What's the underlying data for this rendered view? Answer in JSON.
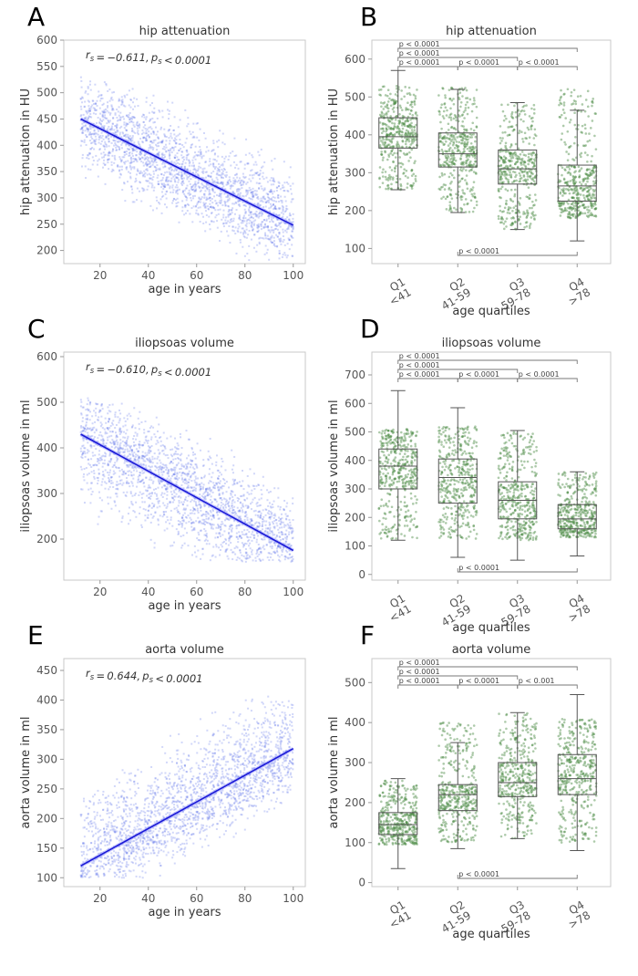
{
  "figure": {
    "panels": [
      {
        "letter": "A",
        "type": "scatter",
        "title": "hip attenuation",
        "xlabel": "age in years",
        "ylabel": "hip attenuation in HU",
        "annotation": "r_s = −0.611, p_s < 0.0001"
      },
      {
        "letter": "B",
        "type": "box",
        "title": "hip attenuation",
        "xlabel": "age quartiles",
        "ylabel": "hip attenuation in HU"
      },
      {
        "letter": "C",
        "type": "scatter",
        "title": "iliopsoas volume",
        "xlabel": "age in years",
        "ylabel": "iliopsoas volume in ml",
        "annotation": "r_s = −0.610, p_s < 0.0001"
      },
      {
        "letter": "D",
        "type": "box",
        "title": "iliopsoas volume",
        "xlabel": "age quartiles",
        "ylabel": "iliopsoas volume in ml"
      },
      {
        "letter": "E",
        "type": "scatter",
        "title": "aorta volume",
        "xlabel": "age in years",
        "ylabel": "aorta volume in ml",
        "annotation": "r_s = 0.644, p_s < 0.0001"
      },
      {
        "letter": "F",
        "type": "box",
        "title": "aorta volume",
        "xlabel": "age quartiles",
        "ylabel": "aorta volume in ml"
      }
    ]
  },
  "chart_data": [
    {
      "type": "scatter",
      "panel": "A",
      "title": "hip attenuation",
      "xlabel": "age in years",
      "ylabel": "hip attenuation in HU",
      "xlim": [
        5,
        105
      ],
      "ylim": [
        175,
        600
      ],
      "xticks": [
        20,
        40,
        60,
        80,
        100
      ],
      "yticks": [
        200,
        250,
        300,
        350,
        400,
        450,
        500,
        550,
        600
      ],
      "regression": {
        "x": [
          12,
          100
        ],
        "y": [
          450,
          248
        ]
      },
      "cloud": {
        "x_range": [
          12,
          100
        ],
        "spread_hi": 80,
        "spread_lo": 75,
        "y_min": 180,
        "y_max": 530
      },
      "annotation": "r_s = −0.611, p_s < 0.0001",
      "colors": {
        "points": "#5b6ee8",
        "line": "#1a1ad6"
      }
    },
    {
      "type": "box",
      "panel": "B",
      "title": "hip attenuation",
      "xlabel": "age quartiles",
      "ylabel": "hip attenuation in HU",
      "ylim": [
        60,
        650
      ],
      "yticks": [
        100,
        200,
        300,
        400,
        500,
        600
      ],
      "categories": [
        [
          "Q1",
          "<41"
        ],
        [
          "Q2",
          "41-59"
        ],
        [
          "Q3",
          "59-78"
        ],
        [
          "Q4",
          ">78"
        ]
      ],
      "boxes": [
        {
          "whisker_low": 255,
          "q1": 365,
          "median": 395,
          "q3": 445,
          "whisker_high": 570
        },
        {
          "whisker_low": 195,
          "q1": 315,
          "median": 350,
          "q3": 405,
          "whisker_high": 520
        },
        {
          "whisker_low": 150,
          "q1": 270,
          "median": 310,
          "q3": 360,
          "whisker_high": 485
        },
        {
          "whisker_low": 120,
          "q1": 225,
          "median": 265,
          "q3": 320,
          "whisker_high": 465
        }
      ],
      "jitter": {
        "low": [
          255,
          195,
          150,
          180
        ],
        "high": [
          530,
          525,
          485,
          525
        ]
      },
      "significance": [
        {
          "from": 0,
          "to": 3,
          "level": 1,
          "label": "p < 0.0001"
        },
        {
          "from": 0,
          "to": 2,
          "level": 2,
          "label": "p < 0.0001"
        },
        {
          "from": 0,
          "to": 1,
          "level": 3,
          "label": "p < 0.0001"
        },
        {
          "from": 1,
          "to": 2,
          "level": 3,
          "label": "p < 0.0001"
        },
        {
          "from": 2,
          "to": 3,
          "level": 3,
          "label": "p < 0.0001"
        },
        {
          "from": 1,
          "to": 3,
          "level": 0,
          "label": "p < 0.0001"
        }
      ],
      "colors": {
        "points": "#4a8a42",
        "box": "#555555"
      }
    },
    {
      "type": "scatter",
      "panel": "C",
      "title": "iliopsoas volume",
      "xlabel": "age in years",
      "ylabel": "iliopsoas volume in ml",
      "xlim": [
        5,
        105
      ],
      "ylim": [
        110,
        610
      ],
      "xticks": [
        20,
        40,
        60,
        80,
        100
      ],
      "yticks": [
        200,
        300,
        400,
        500,
        600
      ],
      "regression": {
        "x": [
          12,
          100
        ],
        "y": [
          430,
          175
        ]
      },
      "cloud": {
        "x_range": [
          12,
          100
        ],
        "spread_hi": 90,
        "spread_lo": 110,
        "y_min": 150,
        "y_max": 515
      },
      "annotation": "r_s = −0.610, p_s < 0.0001",
      "colors": {
        "points": "#5b6ee8",
        "line": "#1a1ad6"
      }
    },
    {
      "type": "box",
      "panel": "D",
      "title": "iliopsoas volume",
      "xlabel": "age quartiles",
      "ylabel": "iliopsoas volume in ml",
      "ylim": [
        -20,
        780
      ],
      "yticks": [
        0,
        100,
        200,
        300,
        400,
        500,
        600,
        700
      ],
      "categories": [
        [
          "Q1",
          "<41"
        ],
        [
          "Q2",
          "41-59"
        ],
        [
          "Q3",
          "59-78"
        ],
        [
          "Q4",
          ">78"
        ]
      ],
      "boxes": [
        {
          "whisker_low": 120,
          "q1": 300,
          "median": 380,
          "q3": 440,
          "whisker_high": 645
        },
        {
          "whisker_low": 60,
          "q1": 250,
          "median": 340,
          "q3": 405,
          "whisker_high": 585
        },
        {
          "whisker_low": 50,
          "q1": 195,
          "median": 260,
          "q3": 325,
          "whisker_high": 505
        },
        {
          "whisker_low": 65,
          "q1": 160,
          "median": 195,
          "q3": 245,
          "whisker_high": 360
        }
      ],
      "jitter": {
        "low": [
          125,
          125,
          120,
          130
        ],
        "high": [
          510,
          520,
          500,
          360
        ]
      },
      "significance": [
        {
          "from": 0,
          "to": 3,
          "level": 1,
          "label": "p < 0.0001"
        },
        {
          "from": 0,
          "to": 2,
          "level": 2,
          "label": "p < 0.0001"
        },
        {
          "from": 0,
          "to": 1,
          "level": 3,
          "label": "p < 0.0001"
        },
        {
          "from": 1,
          "to": 2,
          "level": 3,
          "label": "p < 0.0001"
        },
        {
          "from": 2,
          "to": 3,
          "level": 3,
          "label": "p < 0.0001"
        },
        {
          "from": 1,
          "to": 3,
          "level": 0,
          "label": "p < 0.0001"
        }
      ],
      "colors": {
        "points": "#4a8a42",
        "box": "#555555"
      }
    },
    {
      "type": "scatter",
      "panel": "E",
      "title": "aorta volume",
      "xlabel": "age in years",
      "ylabel": "aorta volume in ml",
      "xlim": [
        5,
        105
      ],
      "ylim": [
        85,
        470
      ],
      "xticks": [
        20,
        40,
        60,
        80,
        100
      ],
      "yticks": [
        100,
        150,
        200,
        250,
        300,
        350,
        400,
        450
      ],
      "regression": {
        "x": [
          12,
          100
        ],
        "y": [
          120,
          318
        ]
      },
      "cloud": {
        "x_range": [
          12,
          100
        ],
        "spread_hi": 90,
        "spread_lo": 60,
        "y_min": 100,
        "y_max": 410
      },
      "annotation": "r_s = 0.644, p_s < 0.0001",
      "colors": {
        "points": "#5b6ee8",
        "line": "#1a1ad6"
      }
    },
    {
      "type": "box",
      "panel": "F",
      "title": "aorta volume",
      "xlabel": "age quartiles",
      "ylabel": "aorta volume in ml",
      "ylim": [
        -10,
        560
      ],
      "yticks": [
        0,
        100,
        200,
        300,
        400,
        500
      ],
      "categories": [
        [
          "Q1",
          "<41"
        ],
        [
          "Q2",
          "41-59"
        ],
        [
          "Q3",
          "59-78"
        ],
        [
          "Q4",
          ">78"
        ]
      ],
      "boxes": [
        {
          "whisker_low": 35,
          "q1": 120,
          "median": 145,
          "q3": 175,
          "whisker_high": 260
        },
        {
          "whisker_low": 85,
          "q1": 180,
          "median": 220,
          "q3": 245,
          "whisker_high": 350
        },
        {
          "whisker_low": 110,
          "q1": 215,
          "median": 250,
          "q3": 300,
          "whisker_high": 425
        },
        {
          "whisker_low": 80,
          "q1": 220,
          "median": 260,
          "q3": 320,
          "whisker_high": 470
        }
      ],
      "jitter": {
        "low": [
          95,
          100,
          110,
          100
        ],
        "high": [
          255,
          400,
          425,
          410
        ]
      },
      "significance": [
        {
          "from": 0,
          "to": 3,
          "level": 1,
          "label": "p < 0.0001"
        },
        {
          "from": 0,
          "to": 2,
          "level": 2,
          "label": "p < 0.0001"
        },
        {
          "from": 0,
          "to": 1,
          "level": 3,
          "label": "p < 0.0001"
        },
        {
          "from": 1,
          "to": 2,
          "level": 3,
          "label": "p < 0.0001"
        },
        {
          "from": 2,
          "to": 3,
          "level": 3,
          "label": "p < 0.001"
        },
        {
          "from": 1,
          "to": 3,
          "level": 0,
          "label": "p < 0.0001"
        }
      ],
      "colors": {
        "points": "#4a8a42",
        "box": "#555555"
      }
    }
  ]
}
